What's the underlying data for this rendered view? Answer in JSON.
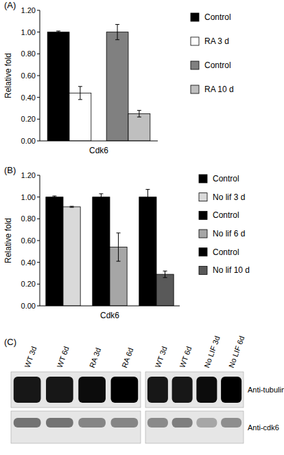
{
  "chart_data": [
    {
      "type": "bar",
      "title": "(A)",
      "y_label": "Relative fold",
      "categories": [
        "Cdk6"
      ],
      "ylim": [
        0,
        1.2
      ],
      "yticks": [
        {
          "value": 0,
          "label": "0.00"
        },
        {
          "value": 0.2,
          "label": "0.20"
        },
        {
          "value": 0.4,
          "label": "0.40"
        },
        {
          "value": 0.6,
          "label": "0.60"
        },
        {
          "value": 0.8,
          "label": "0.80"
        },
        {
          "value": 1.0,
          "label": "1.00"
        },
        {
          "value": 1.2,
          "label": "1.20"
        }
      ],
      "legend": "right",
      "series": [
        {
          "name": "Control",
          "color": "#000000",
          "values": [
            1.0
          ],
          "errors": [
            0.01
          ]
        },
        {
          "name": "RA 3 d",
          "color": "#ffffff",
          "values": [
            0.44
          ],
          "errors": [
            0.06
          ]
        },
        {
          "name": "Control",
          "color": "#808080",
          "values": [
            1.0
          ],
          "errors": [
            0.07
          ]
        },
        {
          "name": "RA 10 d",
          "color": "#bfbfbf",
          "values": [
            0.25
          ],
          "errors": [
            0.03
          ]
        }
      ]
    },
    {
      "type": "bar",
      "title": "(B)",
      "y_label": "Relative fold",
      "categories": [
        "Cdk6"
      ],
      "ylim": [
        0,
        1.2
      ],
      "yticks": [
        {
          "value": 0,
          "label": "0.00"
        },
        {
          "value": 0.2,
          "label": "0.20"
        },
        {
          "value": 0.4,
          "label": "0.40"
        },
        {
          "value": 0.6,
          "label": "0.60"
        },
        {
          "value": 0.8,
          "label": "0.80"
        },
        {
          "value": 1.0,
          "label": "1.00"
        },
        {
          "value": 1.2,
          "label": "1.20"
        }
      ],
      "legend": "right",
      "series": [
        {
          "name": "Control",
          "color": "#000000",
          "values": [
            1.0
          ],
          "errors": [
            0.01
          ]
        },
        {
          "name": "No lif 3 d",
          "color": "#d9d9d9",
          "values": [
            0.91
          ],
          "errors": [
            0.005
          ]
        },
        {
          "name": "Control",
          "color": "#000000",
          "values": [
            1.0
          ],
          "errors": [
            0.03
          ]
        },
        {
          "name": "No lif 6 d",
          "color": "#a6a6a6",
          "values": [
            0.54
          ],
          "errors": [
            0.13
          ]
        },
        {
          "name": "Control",
          "color": "#000000",
          "values": [
            1.0
          ],
          "errors": [
            0.07
          ]
        },
        {
          "name": "No lif 10 d",
          "color": "#595959",
          "values": [
            0.29
          ],
          "errors": [
            0.03
          ]
        }
      ]
    }
  ],
  "blot": {
    "title": "(C)",
    "panels": [
      {
        "lanes": [
          "WT 3d",
          "WT 6d",
          "RA 3d",
          "RA 6d"
        ]
      },
      {
        "lanes": [
          "WT 3d",
          "WT 6d",
          "No LIF 3d",
          "No LIF 6d"
        ]
      }
    ],
    "rows": [
      {
        "label": "Anti-tubulin",
        "bands": [
          [
            0.9,
            0.9,
            0.95,
            1.0
          ],
          [
            0.9,
            0.9,
            0.95,
            1.0
          ]
        ]
      },
      {
        "label": "Anti-cdk6",
        "bands": [
          [
            0.5,
            0.5,
            0.42,
            0.42
          ],
          [
            0.4,
            0.45,
            0.28,
            0.38
          ]
        ]
      }
    ]
  }
}
